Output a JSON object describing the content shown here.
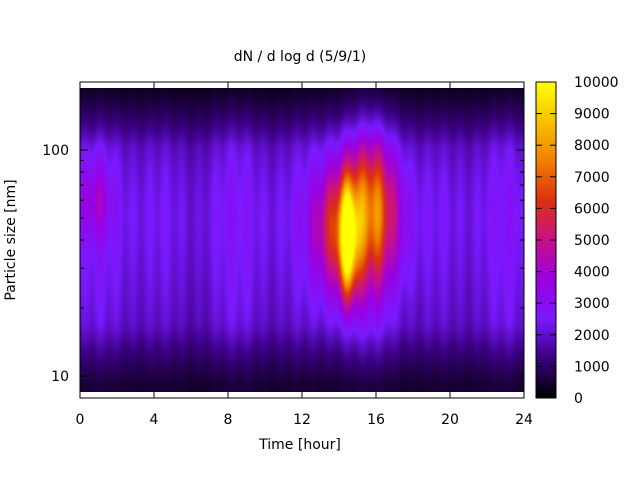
{
  "chart_data": {
    "type": "heatmap",
    "title": "dN / d log d (5/9/1)",
    "xlabel": "Time [hour]",
    "ylabel": "Particle size [nm]",
    "x_ticks": [
      0,
      4,
      8,
      12,
      16,
      20,
      24
    ],
    "xlim": [
      0,
      24
    ],
    "y_scale": "log",
    "y_ticks": [
      10,
      100
    ],
    "ylim": [
      8,
      200
    ],
    "colorbar": {
      "ticks": [
        0,
        1000,
        2000,
        3000,
        4000,
        5000,
        6000,
        7000,
        8000,
        9000,
        10000
      ],
      "range": [
        0,
        10000
      ],
      "palette": [
        "#000000",
        "#3a0080",
        "#7a1aff",
        "#9a00e0",
        "#c8108a",
        "#dd3010",
        "#f08000",
        "#f8c000",
        "#ffff00"
      ]
    },
    "peaks": [
      {
        "time": 14.5,
        "size_nm": 40,
        "value": 9500
      },
      {
        "time": 15.8,
        "size_nm": 55,
        "value": 6000
      },
      {
        "time": 0.8,
        "size_nm": 60,
        "value": 4200
      }
    ]
  }
}
